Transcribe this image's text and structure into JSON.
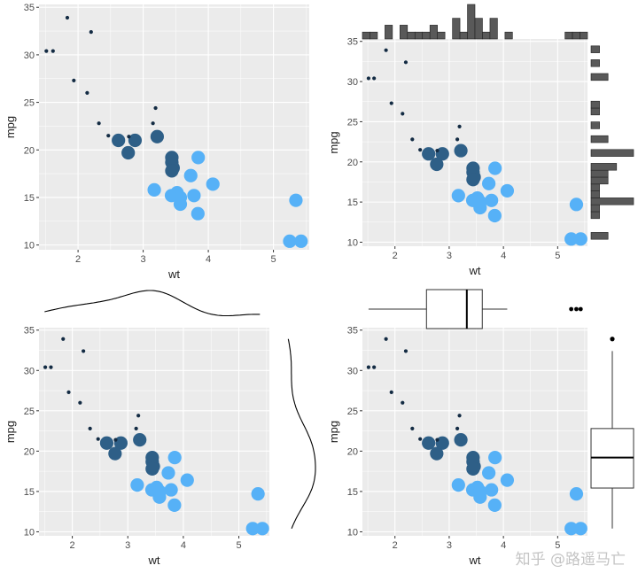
{
  "chart_data": {
    "type": "scatter",
    "xlabel": "wt",
    "ylabel": "mpg",
    "xlim": [
      1.4,
      5.55
    ],
    "ylim": [
      9.5,
      35.3
    ],
    "xticks": [
      2,
      3,
      4,
      5
    ],
    "yticks": [
      10,
      15,
      20,
      25,
      30,
      35
    ],
    "grid": true,
    "points": [
      {
        "wt": 2.62,
        "mpg": 21.0,
        "group": "dark",
        "size": "large"
      },
      {
        "wt": 2.875,
        "mpg": 21.0,
        "group": "dark",
        "size": "large"
      },
      {
        "wt": 2.32,
        "mpg": 22.8,
        "group": "small",
        "size": "small"
      },
      {
        "wt": 3.215,
        "mpg": 21.4,
        "group": "dark",
        "size": "large"
      },
      {
        "wt": 3.44,
        "mpg": 18.7,
        "group": "dark",
        "size": "large"
      },
      {
        "wt": 3.46,
        "mpg": 18.1,
        "group": "dark",
        "size": "large"
      },
      {
        "wt": 3.57,
        "mpg": 14.3,
        "group": "light",
        "size": "large"
      },
      {
        "wt": 3.19,
        "mpg": 24.4,
        "group": "small",
        "size": "small"
      },
      {
        "wt": 3.15,
        "mpg": 22.8,
        "group": "small",
        "size": "small"
      },
      {
        "wt": 3.44,
        "mpg": 19.2,
        "group": "dark",
        "size": "large"
      },
      {
        "wt": 3.44,
        "mpg": 17.8,
        "group": "dark",
        "size": "large"
      },
      {
        "wt": 4.07,
        "mpg": 16.4,
        "group": "light",
        "size": "large"
      },
      {
        "wt": 3.73,
        "mpg": 17.3,
        "group": "light",
        "size": "large"
      },
      {
        "wt": 3.78,
        "mpg": 15.2,
        "group": "light",
        "size": "large"
      },
      {
        "wt": 5.25,
        "mpg": 10.4,
        "group": "light",
        "size": "large"
      },
      {
        "wt": 5.424,
        "mpg": 10.4,
        "group": "light",
        "size": "large"
      },
      {
        "wt": 5.345,
        "mpg": 14.7,
        "group": "light",
        "size": "large"
      },
      {
        "wt": 2.2,
        "mpg": 32.4,
        "group": "small",
        "size": "small"
      },
      {
        "wt": 1.615,
        "mpg": 30.4,
        "group": "small",
        "size": "small"
      },
      {
        "wt": 1.835,
        "mpg": 33.9,
        "group": "small",
        "size": "small"
      },
      {
        "wt": 2.465,
        "mpg": 21.5,
        "group": "small",
        "size": "small"
      },
      {
        "wt": 3.52,
        "mpg": 15.5,
        "group": "light",
        "size": "large"
      },
      {
        "wt": 3.435,
        "mpg": 15.2,
        "group": "light",
        "size": "large"
      },
      {
        "wt": 3.84,
        "mpg": 13.3,
        "group": "light",
        "size": "large"
      },
      {
        "wt": 3.845,
        "mpg": 19.2,
        "group": "light",
        "size": "large"
      },
      {
        "wt": 1.935,
        "mpg": 27.3,
        "group": "small",
        "size": "small"
      },
      {
        "wt": 2.14,
        "mpg": 26.0,
        "group": "small",
        "size": "small"
      },
      {
        "wt": 1.513,
        "mpg": 30.4,
        "group": "small",
        "size": "small"
      },
      {
        "wt": 3.17,
        "mpg": 15.8,
        "group": "light",
        "size": "large"
      },
      {
        "wt": 2.77,
        "mpg": 19.7,
        "group": "dark",
        "size": "large"
      },
      {
        "wt": 3.57,
        "mpg": 15.0,
        "group": "light",
        "size": "large"
      },
      {
        "wt": 2.78,
        "mpg": 21.4,
        "group": "small",
        "size": "small"
      }
    ],
    "panels": [
      {
        "id": "plain",
        "marginal": "none"
      },
      {
        "id": "histogram",
        "marginal": "histogram"
      },
      {
        "id": "density",
        "marginal": "density"
      },
      {
        "id": "boxplot",
        "marginal": "boxplot"
      }
    ],
    "colors": {
      "panel_bg": "#ebebeb",
      "grid": "#ffffff",
      "dark_point": "#2e5f87",
      "light_point": "#56b1f7",
      "small_point": "#132b43",
      "hist_fill": "#595959",
      "marginal_line": "#000000"
    }
  },
  "watermark": "知乎 @路遥马亡"
}
